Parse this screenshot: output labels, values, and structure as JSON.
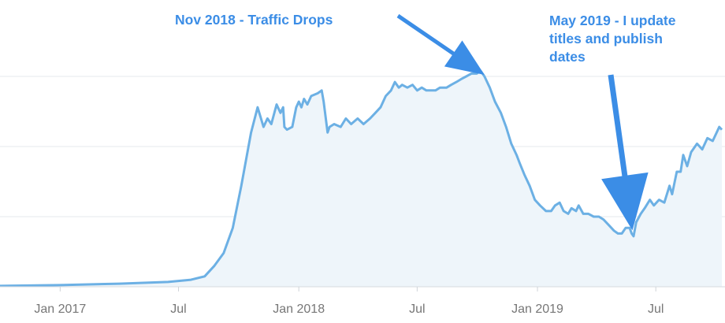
{
  "chart_data": {
    "type": "area",
    "title": "",
    "xlabel": "",
    "ylabel": "",
    "grid": true,
    "x_range": [
      "2016-10-01",
      "2019-10-10"
    ],
    "y_range": [
      0,
      100
    ],
    "x_ticks": [
      {
        "date": "2017-01-01",
        "label": "Jan 2017"
      },
      {
        "date": "2017-07-01",
        "label": "Jul"
      },
      {
        "date": "2018-01-01",
        "label": "Jan 2018"
      },
      {
        "date": "2018-07-01",
        "label": "Jul"
      },
      {
        "date": "2019-01-01",
        "label": "Jan 2019"
      },
      {
        "date": "2019-07-01",
        "label": "Jul"
      }
    ],
    "gridlines_y": [
      25,
      50,
      75
    ],
    "series": [
      {
        "color": "#6cb0e4",
        "fill": "#eef5fa",
        "points": [
          [
            "2016-10-01",
            0.3
          ],
          [
            "2017-01-01",
            0.6
          ],
          [
            "2017-04-01",
            1.1
          ],
          [
            "2017-06-15",
            1.7
          ],
          [
            "2017-07-20",
            2.5
          ],
          [
            "2017-08-10",
            3.7
          ],
          [
            "2017-08-25",
            7.5
          ],
          [
            "2017-09-08",
            12
          ],
          [
            "2017-09-22",
            21
          ],
          [
            "2017-10-05",
            36
          ],
          [
            "2017-10-20",
            55
          ],
          [
            "2017-10-30",
            64
          ],
          [
            "2017-11-08",
            57
          ],
          [
            "2017-11-14",
            60
          ],
          [
            "2017-11-20",
            58
          ],
          [
            "2017-11-28",
            65
          ],
          [
            "2017-12-04",
            62
          ],
          [
            "2017-12-08",
            64
          ],
          [
            "2017-12-10",
            57
          ],
          [
            "2017-12-14",
            56
          ],
          [
            "2017-12-22",
            57
          ],
          [
            "2017-12-28",
            64
          ],
          [
            "2018-01-01",
            66
          ],
          [
            "2018-01-05",
            64
          ],
          [
            "2018-01-09",
            67
          ],
          [
            "2018-01-14",
            65
          ],
          [
            "2018-01-20",
            68
          ],
          [
            "2018-01-30",
            69
          ],
          [
            "2018-02-05",
            70
          ],
          [
            "2018-02-08",
            66
          ],
          [
            "2018-02-14",
            55
          ],
          [
            "2018-02-17",
            57
          ],
          [
            "2018-02-24",
            58
          ],
          [
            "2018-03-06",
            57
          ],
          [
            "2018-03-14",
            60
          ],
          [
            "2018-03-22",
            58
          ],
          [
            "2018-04-01",
            60
          ],
          [
            "2018-04-10",
            58
          ],
          [
            "2018-04-20",
            60
          ],
          [
            "2018-04-28",
            62
          ],
          [
            "2018-05-06",
            64
          ],
          [
            "2018-05-14",
            68
          ],
          [
            "2018-05-22",
            70
          ],
          [
            "2018-05-28",
            73
          ],
          [
            "2018-06-03",
            71
          ],
          [
            "2018-06-08",
            72
          ],
          [
            "2018-06-16",
            71
          ],
          [
            "2018-06-24",
            72
          ],
          [
            "2018-07-01",
            70
          ],
          [
            "2018-07-08",
            71
          ],
          [
            "2018-07-15",
            70
          ],
          [
            "2018-07-22",
            70
          ],
          [
            "2018-07-29",
            70
          ],
          [
            "2018-08-05",
            71
          ],
          [
            "2018-08-15",
            71
          ],
          [
            "2018-08-22",
            72
          ],
          [
            "2018-08-30",
            73
          ],
          [
            "2018-09-06",
            74
          ],
          [
            "2018-09-14",
            75
          ],
          [
            "2018-09-22",
            76
          ],
          [
            "2018-09-30",
            76
          ],
          [
            "2018-10-06",
            77
          ],
          [
            "2018-10-12",
            75
          ],
          [
            "2018-10-20",
            71
          ],
          [
            "2018-10-28",
            66
          ],
          [
            "2018-11-06",
            62
          ],
          [
            "2018-11-14",
            57
          ],
          [
            "2018-11-22",
            51
          ],
          [
            "2018-11-30",
            47
          ],
          [
            "2018-12-05",
            44
          ],
          [
            "2018-12-12",
            40
          ],
          [
            "2018-12-20",
            36
          ],
          [
            "2018-12-28",
            31
          ],
          [
            "2019-01-05",
            29
          ],
          [
            "2019-01-14",
            27
          ],
          [
            "2019-01-22",
            27
          ],
          [
            "2019-01-28",
            29
          ],
          [
            "2019-02-04",
            30
          ],
          [
            "2019-02-10",
            27
          ],
          [
            "2019-02-17",
            26
          ],
          [
            "2019-02-22",
            28
          ],
          [
            "2019-03-01",
            27
          ],
          [
            "2019-03-05",
            29
          ],
          [
            "2019-03-12",
            26
          ],
          [
            "2019-03-20",
            26
          ],
          [
            "2019-03-28",
            25
          ],
          [
            "2019-04-05",
            25
          ],
          [
            "2019-04-12",
            24
          ],
          [
            "2019-04-20",
            22
          ],
          [
            "2019-04-28",
            20
          ],
          [
            "2019-05-04",
            19
          ],
          [
            "2019-05-10",
            19
          ],
          [
            "2019-05-16",
            21
          ],
          [
            "2019-05-22",
            21
          ],
          [
            "2019-05-25",
            19
          ],
          [
            "2019-05-28",
            18
          ],
          [
            "2019-06-01",
            23
          ],
          [
            "2019-06-08",
            26
          ],
          [
            "2019-06-14",
            28
          ],
          [
            "2019-06-22",
            31
          ],
          [
            "2019-06-28",
            29
          ],
          [
            "2019-07-06",
            31
          ],
          [
            "2019-07-14",
            30
          ],
          [
            "2019-07-22",
            36
          ],
          [
            "2019-07-26",
            33
          ],
          [
            "2019-08-02",
            41
          ],
          [
            "2019-08-08",
            41
          ],
          [
            "2019-08-12",
            47
          ],
          [
            "2019-08-18",
            43
          ],
          [
            "2019-08-24",
            48
          ],
          [
            "2019-09-02",
            51
          ],
          [
            "2019-09-10",
            49
          ],
          [
            "2019-09-18",
            53
          ],
          [
            "2019-09-26",
            52
          ],
          [
            "2019-10-02",
            55
          ],
          [
            "2019-10-06",
            57
          ],
          [
            "2019-10-10",
            56
          ]
        ]
      }
    ],
    "annotations": [
      {
        "text_lines": [
          "Nov 2018 - Traffic Drops"
        ],
        "color": "#3b8de6",
        "arrow_to": [
          "2018-10-12",
          75
        ]
      },
      {
        "text_lines": [
          "May 2019 - I update",
          "titles and publish",
          "dates"
        ],
        "color": "#3b8de6",
        "arrow_to": [
          "2019-05-25",
          19
        ]
      }
    ]
  }
}
